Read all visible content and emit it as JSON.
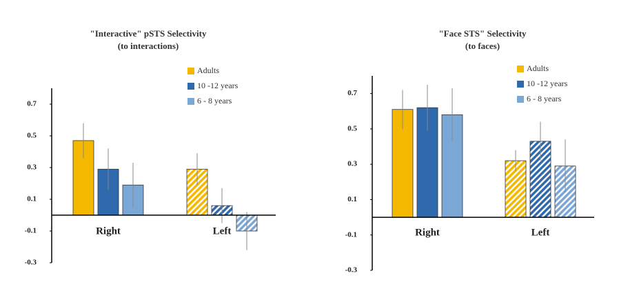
{
  "chart_data": [
    {
      "type": "bar",
      "title": "\"Interactive\" pSTS Selectivity",
      "subtitle": "(to interactions)",
      "categories": [
        "Right",
        "Left"
      ],
      "hatch": [
        false,
        true
      ],
      "series": [
        {
          "name": "Adults",
          "color": "#f5b800",
          "values": [
            0.47,
            0.29
          ],
          "errors": [
            0.11,
            0.1
          ]
        },
        {
          "name": "10 -12 years",
          "color": "#2e6aad",
          "values": [
            0.29,
            0.06
          ],
          "errors": [
            0.13,
            0.11
          ]
        },
        {
          "name": "6 - 8 years",
          "color": "#7ba7d7",
          "values": [
            0.19,
            -0.1
          ],
          "errors": [
            0.14,
            0.12
          ]
        }
      ],
      "ylim": [
        -0.3,
        0.8
      ],
      "yticks": [
        -0.3,
        -0.1,
        0.1,
        0.3,
        0.5,
        0.7
      ]
    },
    {
      "type": "bar",
      "title": "\"Face STS\" Selectivity",
      "subtitle": "(to faces)",
      "categories": [
        "Right",
        "Left"
      ],
      "hatch": [
        false,
        true
      ],
      "series": [
        {
          "name": "Adults",
          "color": "#f5b800",
          "values": [
            0.61,
            0.32
          ],
          "errors": [
            0.11,
            0.06
          ]
        },
        {
          "name": "10 -12 years",
          "color": "#2e6aad",
          "values": [
            0.62,
            0.43
          ],
          "errors": [
            0.13,
            0.11
          ]
        },
        {
          "name": "6 - 8 years",
          "color": "#7ba7d7",
          "values": [
            0.58,
            0.29
          ],
          "errors": [
            0.15,
            0.15
          ]
        }
      ],
      "ylim": [
        -0.3,
        0.8
      ],
      "yticks": [
        -0.3,
        -0.1,
        0.1,
        0.3,
        0.5,
        0.7
      ]
    }
  ]
}
